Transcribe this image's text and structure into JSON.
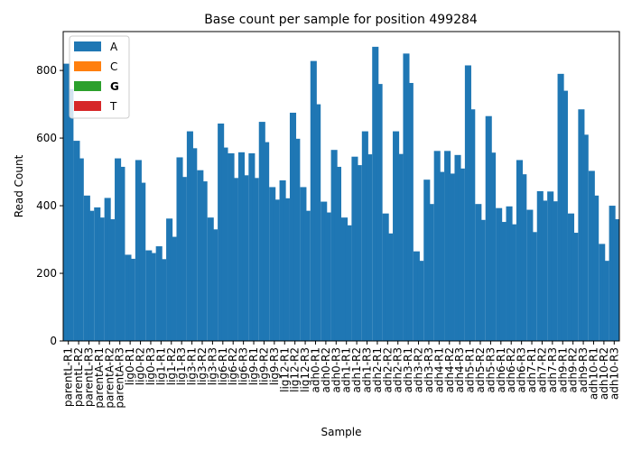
{
  "chart_data": {
    "type": "bar",
    "title": "Base count per sample for position 499284",
    "xlabel": "Sample",
    "ylabel": "Read Count",
    "ylim": [
      0,
      915
    ],
    "yticks": [
      0,
      200,
      400,
      600,
      800
    ],
    "grid": false,
    "legend_placement": "top-left",
    "colors": {
      "A": "#1f77b4",
      "C": "#ff7f0e",
      "G": "#2ca02c",
      "T": "#d62728"
    },
    "legend": [
      "A",
      "C",
      "G",
      "T"
    ],
    "categories": [
      "parentL-R1",
      "parentL-R2",
      "parentL-R3",
      "parentA-R1",
      "parentA-R2",
      "parentA-R3",
      "lig0-R1",
      "lig0-R2",
      "lig0-R3",
      "lig1-R1",
      "lig1-R2",
      "lig1-R3",
      "lig3-R1",
      "lig3-R2",
      "lig3-R3",
      "lig6-R1",
      "lig6-R2",
      "lig6-R3",
      "lig9-R1",
      "lig9-R2",
      "lig9-R3",
      "lig12-R1",
      "lig12-R2",
      "lig12-R3",
      "adh0-R1",
      "adh0-R2",
      "adh0-R3",
      "adh1-R1",
      "adh1-R2",
      "adh1-R3",
      "adh2-R1",
      "adh2-R2",
      "adh2-R3",
      "adh3-R1",
      "adh3-R2",
      "adh3-R3",
      "adh4-R1",
      "adh4-R2",
      "adh4-R3",
      "adh5-R1",
      "adh5-R2",
      "adh5-R3",
      "adh6-R1",
      "adh6-R2",
      "adh6-R3",
      "adh7-R1",
      "adh7-R2",
      "adh7-R3",
      "adh9-R1",
      "adh9-R2",
      "adh9-R3",
      "adh10-R1",
      "adh10-R2",
      "adh10-R3"
    ],
    "series": [
      {
        "name": "A",
        "values": [
          745,
          540,
          385,
          365,
          360,
          515,
          243,
          468,
          260,
          242,
          308,
          485,
          570,
          472,
          330,
          572,
          482,
          490,
          482,
          588,
          418,
          422,
          598,
          385,
          700,
          380,
          515,
          342,
          520,
          552,
          760,
          318,
          553,
          763,
          237,
          405,
          500,
          495,
          510,
          685,
          358,
          557,
          352,
          345,
          493,
          322,
          415,
          413,
          740,
          320,
          610,
          430,
          237,
          360
        ]
      },
      {
        "name": "C",
        "values": [
          0,
          0,
          0,
          0,
          0,
          0,
          0,
          0,
          0,
          0,
          0,
          0,
          0,
          0,
          0,
          0,
          0,
          0,
          0,
          0,
          0,
          0,
          0,
          0,
          0,
          0,
          0,
          0,
          0,
          0,
          0,
          0,
          0,
          0,
          0,
          0,
          0,
          0,
          0,
          0,
          0,
          0,
          0,
          0,
          0,
          0,
          0,
          0,
          0,
          0,
          0,
          0,
          0,
          0
        ]
      },
      {
        "name": "G",
        "values": [
          0,
          0,
          0,
          0,
          0,
          0,
          0,
          0,
          0,
          0,
          0,
          0,
          0,
          0,
          0,
          0,
          0,
          0,
          0,
          0,
          0,
          0,
          0,
          0,
          0,
          0,
          0,
          0,
          0,
          0,
          0,
          0,
          0,
          0,
          0,
          0,
          0,
          0,
          0,
          0,
          0,
          0,
          0,
          0,
          0,
          0,
          0,
          0,
          0,
          0,
          0,
          0,
          0,
          0
        ]
      },
      {
        "name": "T",
        "values": [
          0,
          0,
          0,
          0,
          0,
          0,
          0,
          0,
          0,
          0,
          0,
          0,
          0,
          0,
          0,
          0,
          0,
          0,
          0,
          0,
          0,
          0,
          0,
          0,
          0,
          0,
          0,
          0,
          0,
          0,
          0,
          0,
          0,
          0,
          0,
          0,
          0,
          0,
          0,
          0,
          0,
          0,
          0,
          0,
          0,
          0,
          0,
          0,
          0,
          0,
          0,
          0,
          0,
          0
        ]
      }
    ],
    "secondary_bar_values": [
      820,
      592,
      430,
      395,
      423,
      540,
      255,
      535,
      268,
      280,
      362,
      543,
      620,
      505,
      365,
      643,
      555,
      558,
      555,
      648,
      455,
      475,
      675,
      455,
      828,
      412,
      565,
      365,
      545,
      620,
      870,
      377,
      620,
      850,
      265,
      477,
      562,
      562,
      550,
      815,
      405,
      665,
      393,
      398,
      535,
      388,
      443,
      442,
      790,
      377,
      685,
      503,
      287,
      400
    ]
  }
}
